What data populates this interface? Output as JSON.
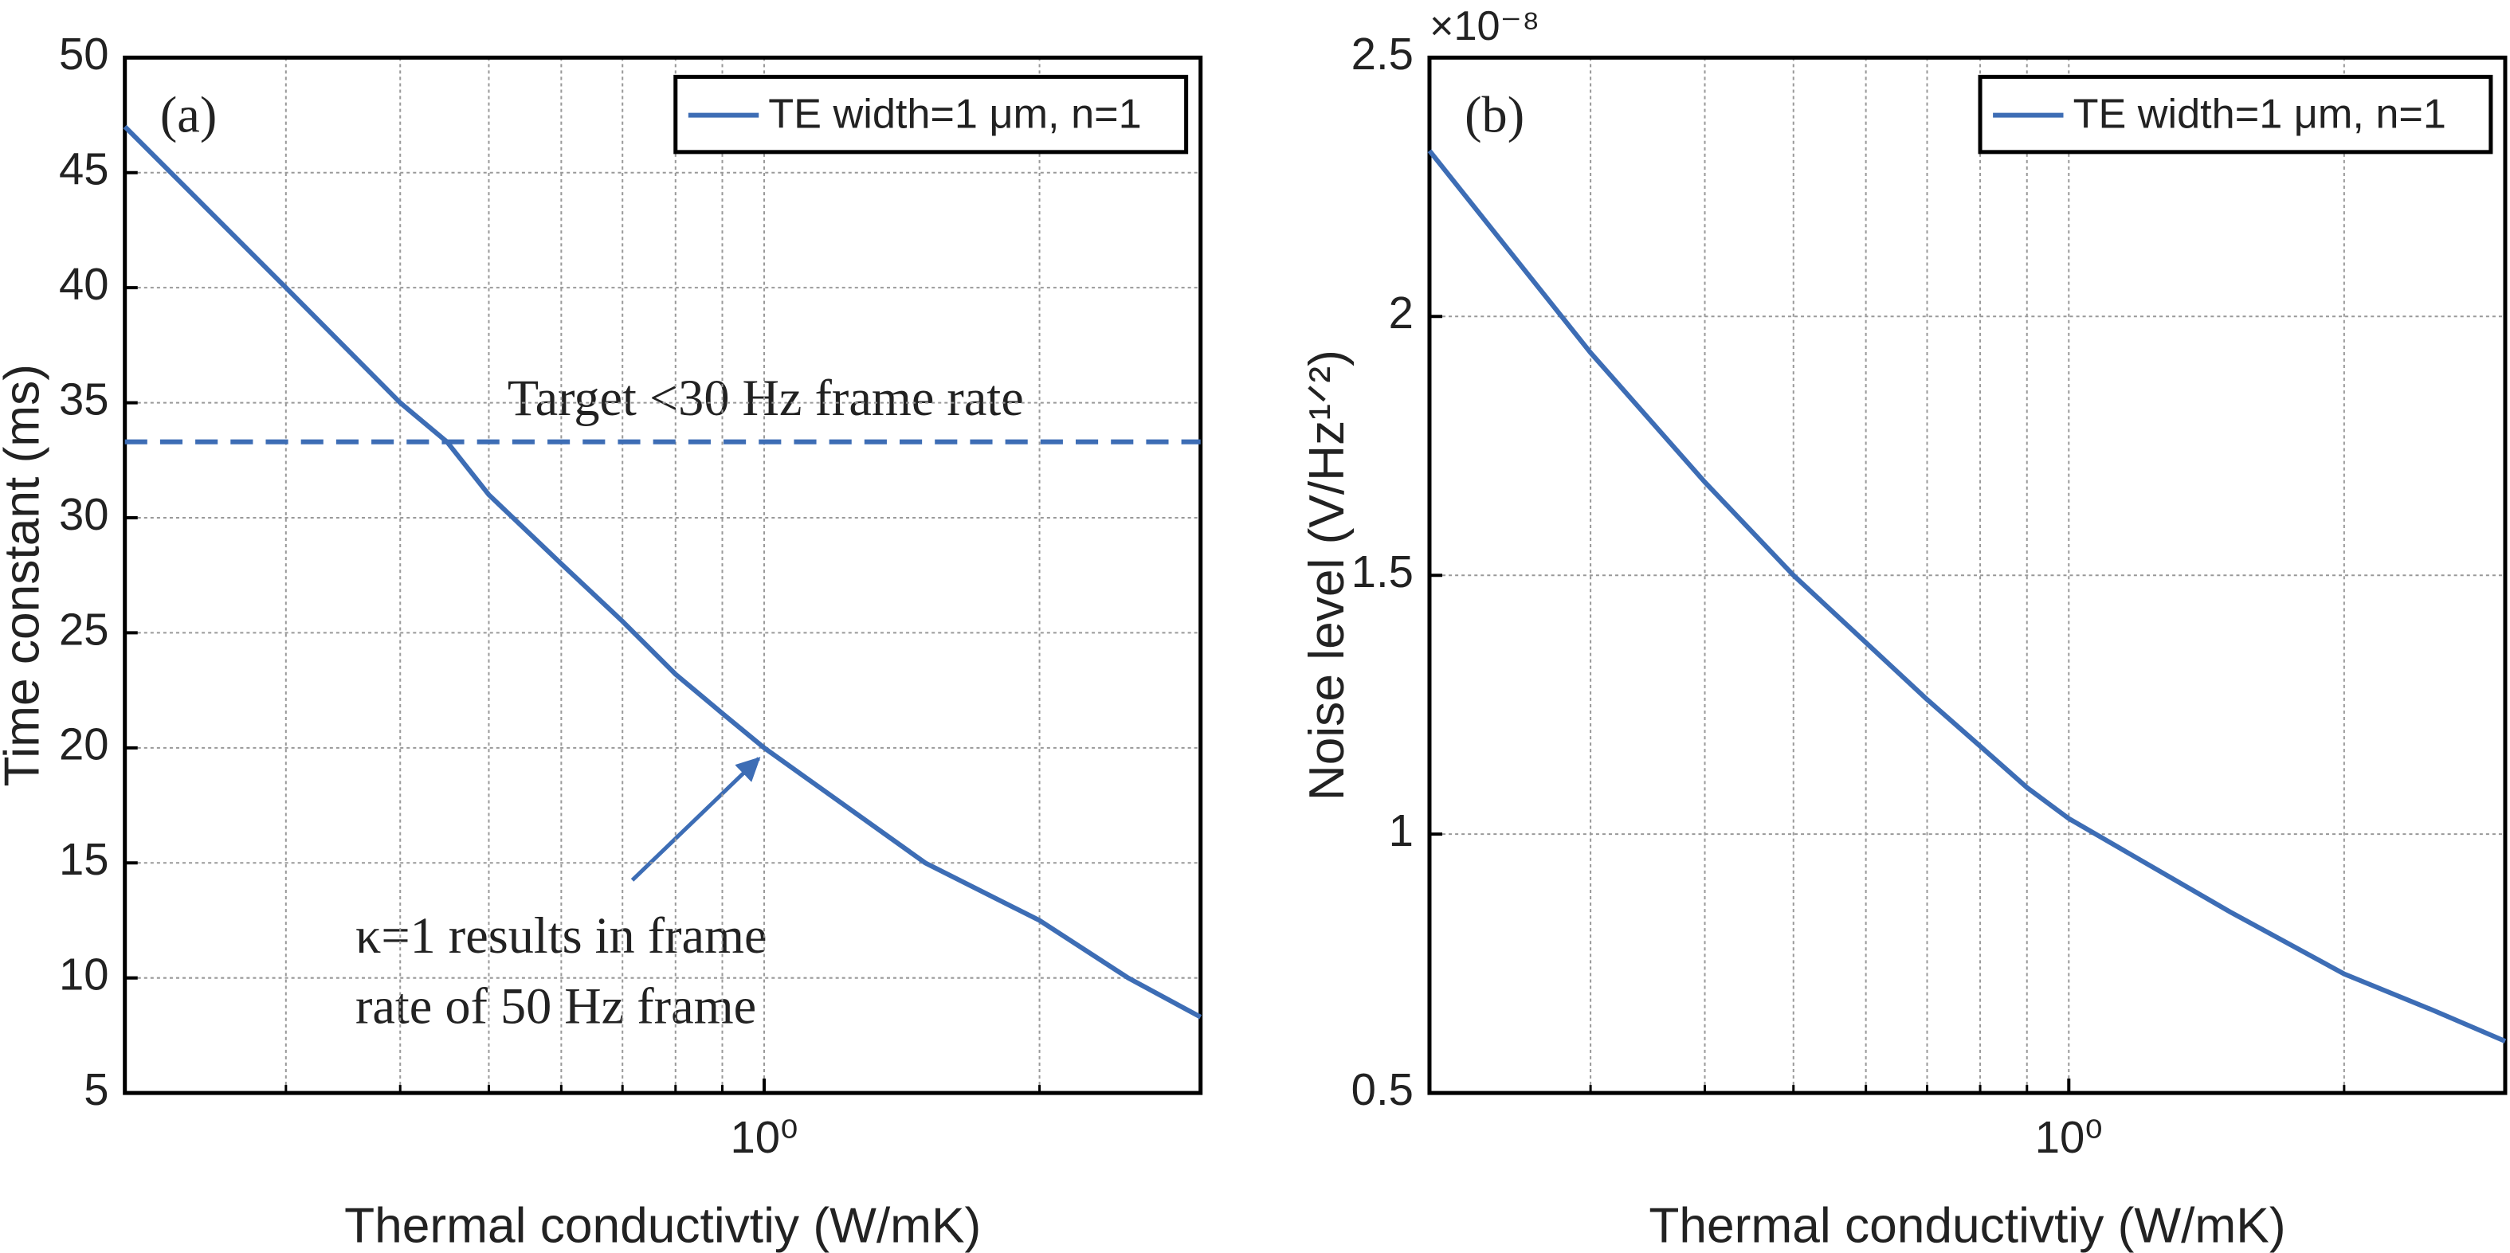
{
  "chart_data": [
    {
      "type": "line",
      "panel_label": "(a)",
      "x_label": "Thermal conductivtiy (W/mK)",
      "y_label": "Time constant (ms)",
      "xscale": "log",
      "xlim": [
        0.2,
        3
      ],
      "xticks": [
        {
          "value": 1,
          "label": "10⁰"
        }
      ],
      "xminor": [
        0.3,
        0.4,
        0.5,
        0.6,
        0.7,
        0.8,
        0.9,
        2
      ],
      "ylim": [
        5,
        50
      ],
      "yticks": [
        5,
        10,
        15,
        20,
        25,
        30,
        35,
        40,
        45,
        50
      ],
      "grid": true,
      "legend": "upper right",
      "x": [
        0.2,
        0.3,
        0.4,
        0.45,
        0.5,
        0.6,
        0.7,
        0.8,
        0.9,
        1,
        1.5,
        2,
        2.5,
        3
      ],
      "series": [
        {
          "name": "TE width=1 μm, n=1",
          "color": "#3d6db5",
          "values": [
            47,
            40,
            35,
            33.3,
            31,
            28,
            25.5,
            23.2,
            21.5,
            20,
            15,
            12.5,
            10,
            8.3
          ]
        }
      ],
      "hline": 33.3,
      "hline_label": "Target <30 Hz frame rate",
      "annotation": [
        "κ=1 results in frame",
        "rate of 50 Hz frame"
      ]
    },
    {
      "type": "line",
      "panel_label": "(b)",
      "x_label": "Thermal conductivtiy (W/mK)",
      "y_label": "Noise level (V/Hz¹ᐟ²)",
      "xscale": "log",
      "xlim": [
        0.2,
        3
      ],
      "xticks": [
        {
          "value": 1,
          "label": "10⁰"
        }
      ],
      "xminor": [
        0.3,
        0.4,
        0.5,
        0.6,
        0.7,
        0.8,
        0.9,
        2
      ],
      "ylim": [
        0.5,
        2.5
      ],
      "yticks": [
        0.5,
        1,
        1.5,
        2,
        2.5
      ],
      "y_exponent": "×10⁻⁸",
      "grid": true,
      "legend": "upper right",
      "x": [
        0.2,
        0.3,
        0.4,
        0.5,
        0.6,
        0.7,
        0.8,
        0.9,
        1,
        1.5,
        2,
        2.5,
        3
      ],
      "series": [
        {
          "name": "TE width=1 μm, n=1",
          "color": "#3d6db5",
          "values": [
            2.32,
            1.93,
            1.68,
            1.5,
            1.37,
            1.26,
            1.17,
            1.09,
            1.03,
            0.85,
            0.73,
            0.66,
            0.6
          ]
        }
      ]
    }
  ]
}
